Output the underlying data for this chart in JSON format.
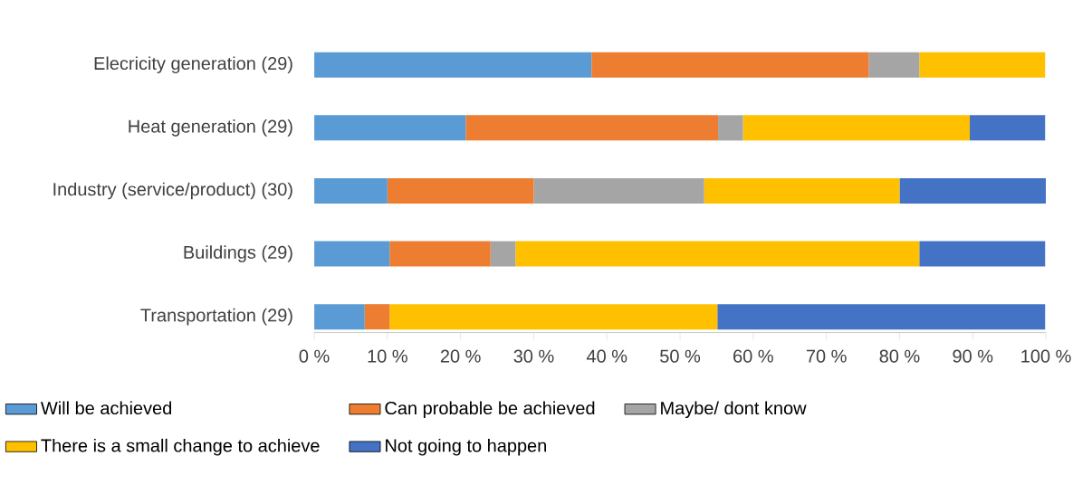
{
  "chart_data": {
    "type": "bar",
    "orientation": "horizontal",
    "stacked": true,
    "categories": [
      "Elecricity generation (29)",
      "Heat generation (29)",
      "Industry (service/product) (30)",
      "Buildings (29)",
      "Transportation (29)"
    ],
    "series": [
      {
        "name": "Will  be achieved",
        "color": "#5b9bd5",
        "values": [
          37.9,
          20.7,
          10.0,
          10.3,
          6.9
        ]
      },
      {
        "name": "Can probable be achieved",
        "color": "#ed7d31",
        "values": [
          37.9,
          34.5,
          20.0,
          13.8,
          3.4
        ]
      },
      {
        "name": "Maybe/ dont know",
        "color": "#a5a5a5",
        "values": [
          6.9,
          3.4,
          23.3,
          3.4,
          0
        ]
      },
      {
        "name": "There is a small change to achieve",
        "color": "#ffc000",
        "values": [
          17.2,
          31.0,
          26.7,
          55.2,
          44.8
        ]
      },
      {
        "name": "Not going to happen",
        "color": "#4472c4",
        "values": [
          0,
          10.3,
          20.0,
          17.2,
          44.8
        ]
      }
    ],
    "xlim": [
      0,
      100
    ],
    "xticks": [
      {
        "value": 0,
        "label": "0 %"
      },
      {
        "value": 10,
        "label": "10 %"
      },
      {
        "value": 20,
        "label": "20 %"
      },
      {
        "value": 30,
        "label": "30 %"
      },
      {
        "value": 40,
        "label": "40 %"
      },
      {
        "value": 50,
        "label": "50 %"
      },
      {
        "value": 60,
        "label": "60 %"
      },
      {
        "value": 70,
        "label": "70 %"
      },
      {
        "value": 80,
        "label": "80 %"
      },
      {
        "value": 90,
        "label": "90 %"
      },
      {
        "value": 100,
        "label": "100 %"
      }
    ],
    "legend": "bottom"
  }
}
